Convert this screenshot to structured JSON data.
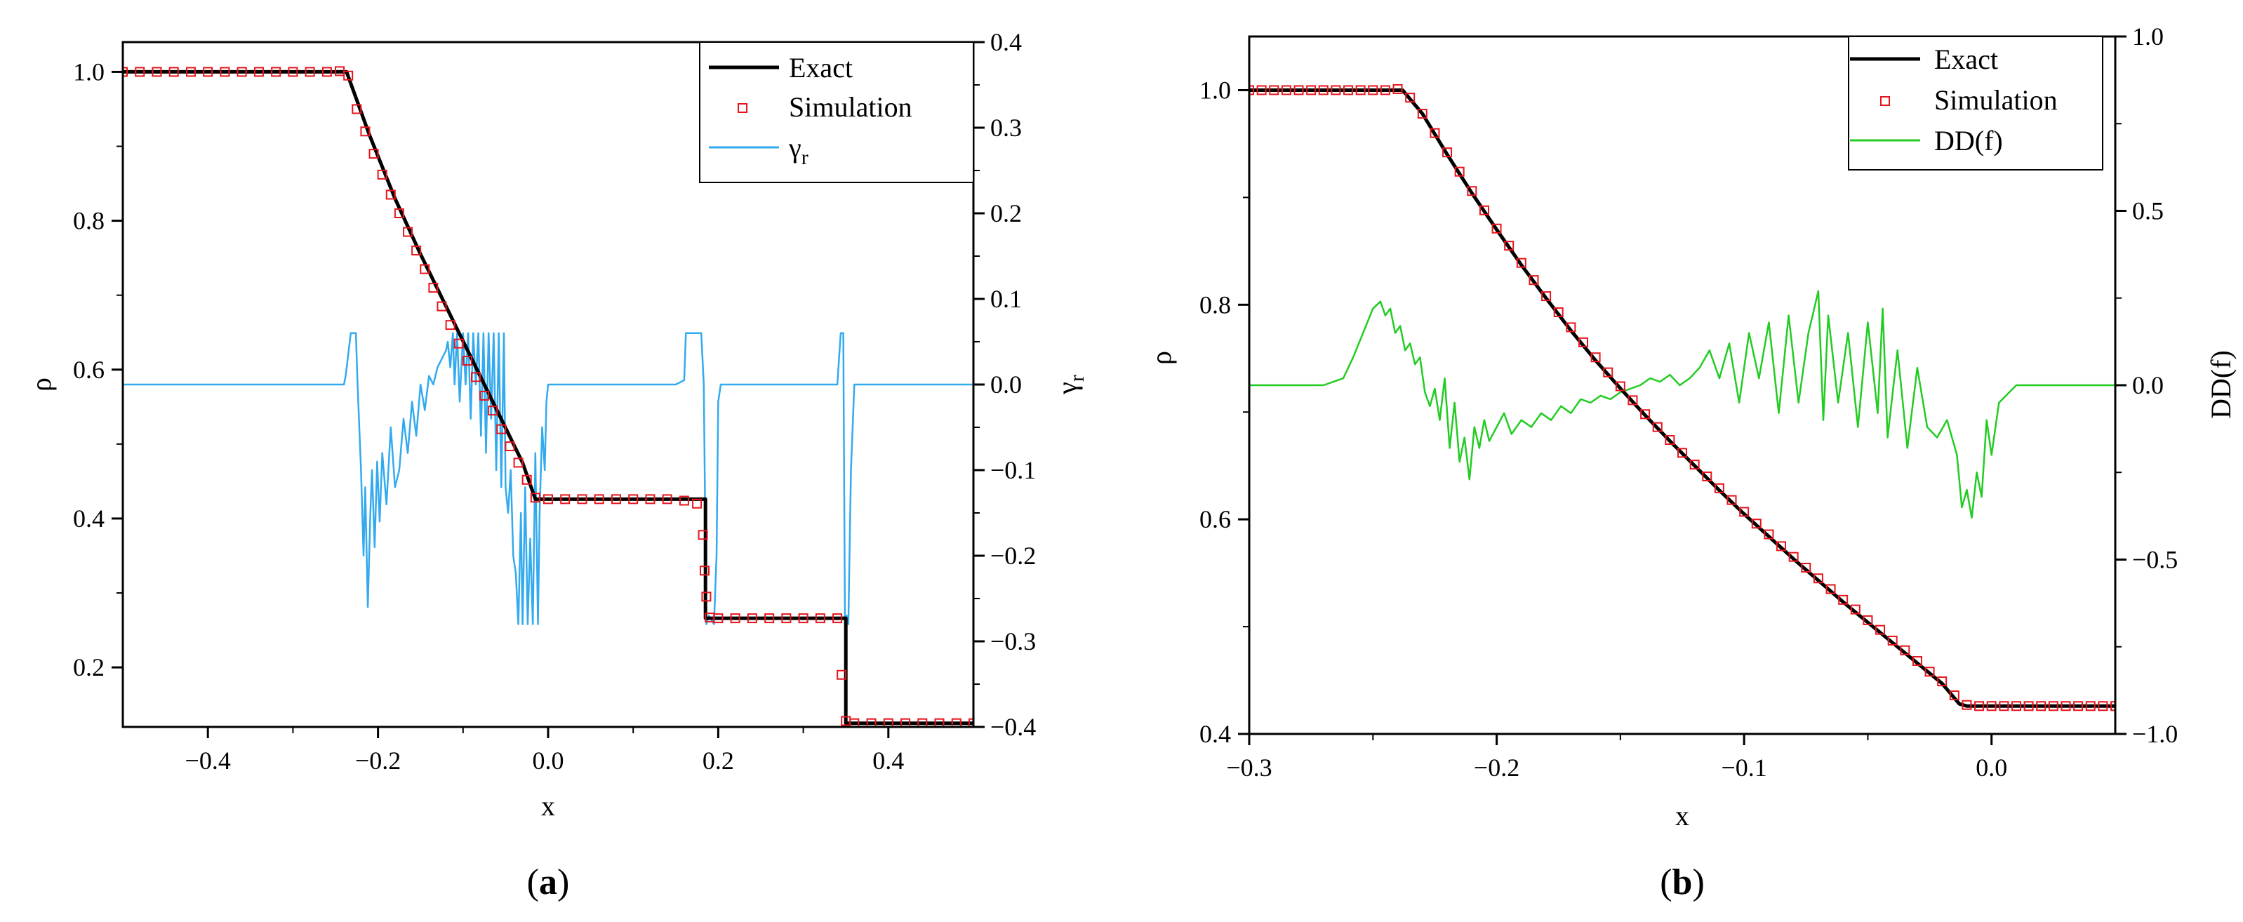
{
  "colors": {
    "exact": "#000000",
    "simulation": "#e8141c",
    "gamma": "#33aaee",
    "dd": "#22cc22",
    "axis": "#000000"
  },
  "chart_data": [
    {
      "type": "line",
      "panel_label": {
        "open": "(",
        "letter": "a",
        "close": ")"
      },
      "xlabel": "x",
      "ylabel": "ρ",
      "y2label": {
        "base": "γ",
        "sub": "r"
      },
      "xlim": [
        -0.5,
        0.5
      ],
      "ylim": [
        0.12,
        1.04
      ],
      "y2lim": [
        -0.4,
        0.4
      ],
      "x_ticks": [
        -0.4,
        -0.2,
        0.0,
        0.2,
        0.4
      ],
      "x_tick_labels": [
        "−0.4",
        "−0.2",
        "0.0",
        "0.2",
        "0.4"
      ],
      "y_ticks": [
        0.2,
        0.4,
        0.6,
        0.8,
        1.0
      ],
      "y_tick_labels": [
        "0.2",
        "0.4",
        "0.6",
        "0.8",
        "1.0"
      ],
      "y2_ticks": [
        -0.4,
        -0.3,
        -0.2,
        -0.1,
        0.0,
        0.1,
        0.2,
        0.3,
        0.4
      ],
      "y2_tick_labels": [
        "−0.4",
        "−0.3",
        "−0.2",
        "−0.1",
        "0.0",
        "0.1",
        "0.2",
        "0.3",
        "0.4"
      ],
      "legend": {
        "position": "top-right",
        "entries": [
          "Exact",
          "Simulation",
          "γ"
        ],
        "gamma_sub": "r"
      },
      "series": [
        {
          "name": "Exact",
          "axis": "left",
          "style": "line",
          "x": [
            -0.5,
            -0.237,
            -0.21,
            -0.18,
            -0.15,
            -0.12,
            -0.09,
            -0.06,
            -0.03,
            -0.015,
            0.185,
            0.185,
            0.35,
            0.35,
            0.5
          ],
          "y": [
            1.0,
            1.0,
            0.915,
            0.83,
            0.755,
            0.685,
            0.615,
            0.545,
            0.475,
            0.426,
            0.426,
            0.266,
            0.266,
            0.125,
            0.125
          ]
        },
        {
          "name": "Simulation",
          "axis": "left",
          "style": "markers",
          "x": [
            -0.5,
            -0.48,
            -0.46,
            -0.44,
            -0.42,
            -0.4,
            -0.38,
            -0.36,
            -0.34,
            -0.32,
            -0.3,
            -0.28,
            -0.26,
            -0.245,
            -0.235,
            -0.225,
            -0.215,
            -0.205,
            -0.195,
            -0.185,
            -0.175,
            -0.165,
            -0.155,
            -0.145,
            -0.135,
            -0.125,
            -0.115,
            -0.105,
            -0.095,
            -0.085,
            -0.075,
            -0.065,
            -0.055,
            -0.045,
            -0.035,
            -0.025,
            -0.015,
            0.0,
            0.02,
            0.04,
            0.06,
            0.08,
            0.1,
            0.12,
            0.14,
            0.16,
            0.175,
            0.182,
            0.184,
            0.186,
            0.19,
            0.2,
            0.22,
            0.24,
            0.26,
            0.28,
            0.3,
            0.32,
            0.34,
            0.345,
            0.35,
            0.36,
            0.38,
            0.4,
            0.42,
            0.44,
            0.46,
            0.48,
            0.5
          ],
          "y": [
            1.0,
            1.0,
            1.0,
            1.0,
            1.0,
            1.0,
            1.0,
            1.0,
            1.0,
            1.0,
            1.0,
            1.0,
            1.0,
            1.001,
            0.995,
            0.95,
            0.92,
            0.89,
            0.862,
            0.835,
            0.81,
            0.785,
            0.76,
            0.735,
            0.71,
            0.685,
            0.66,
            0.635,
            0.612,
            0.59,
            0.565,
            0.545,
            0.52,
            0.497,
            0.475,
            0.452,
            0.428,
            0.426,
            0.426,
            0.426,
            0.426,
            0.426,
            0.426,
            0.426,
            0.426,
            0.424,
            0.42,
            0.378,
            0.33,
            0.295,
            0.267,
            0.266,
            0.266,
            0.266,
            0.266,
            0.266,
            0.266,
            0.266,
            0.266,
            0.19,
            0.128,
            0.125,
            0.125,
            0.125,
            0.125,
            0.125,
            0.125,
            0.125,
            0.125
          ]
        },
        {
          "name": "γr",
          "axis": "right",
          "style": "line",
          "x": [
            -0.5,
            -0.24,
            -0.238,
            -0.232,
            -0.226,
            -0.224,
            -0.22,
            -0.217,
            -0.215,
            -0.212,
            -0.209,
            -0.207,
            -0.204,
            -0.201,
            -0.198,
            -0.195,
            -0.19,
            -0.185,
            -0.18,
            -0.175,
            -0.17,
            -0.165,
            -0.16,
            -0.155,
            -0.15,
            -0.145,
            -0.14,
            -0.135,
            -0.13,
            -0.125,
            -0.12,
            -0.118,
            -0.115,
            -0.112,
            -0.11,
            -0.107,
            -0.104,
            -0.1,
            -0.097,
            -0.094,
            -0.091,
            -0.088,
            -0.085,
            -0.082,
            -0.079,
            -0.076,
            -0.073,
            -0.07,
            -0.067,
            -0.064,
            -0.061,
            -0.058,
            -0.055,
            -0.052,
            -0.05,
            -0.047,
            -0.044,
            -0.041,
            -0.038,
            -0.035,
            -0.032,
            -0.03,
            -0.027,
            -0.024,
            -0.021,
            -0.018,
            -0.015,
            -0.012,
            -0.01,
            -0.007,
            -0.004,
            -0.002,
            0.0,
            0.02,
            0.05,
            0.08,
            0.12,
            0.15,
            0.16,
            0.162,
            0.165,
            0.18,
            0.183,
            0.186,
            0.189,
            0.195,
            0.198,
            0.2,
            0.203,
            0.206,
            0.21,
            0.22,
            0.25,
            0.3,
            0.34,
            0.344,
            0.347,
            0.349,
            0.351,
            0.353,
            0.356,
            0.36,
            0.4,
            0.45,
            0.5
          ],
          "y": [
            0.0,
            0.0,
            0.01,
            0.06,
            0.06,
            0.0,
            -0.1,
            -0.2,
            -0.12,
            -0.26,
            -0.15,
            -0.1,
            -0.19,
            -0.09,
            -0.16,
            -0.08,
            -0.14,
            -0.05,
            -0.12,
            -0.1,
            -0.04,
            -0.08,
            -0.02,
            -0.06,
            0.0,
            -0.03,
            0.01,
            0.0,
            0.02,
            0.03,
            0.04,
            0.05,
            0.02,
            0.06,
            0.0,
            0.06,
            -0.02,
            0.06,
            0.0,
            0.06,
            -0.04,
            0.06,
            0.0,
            0.06,
            -0.06,
            0.06,
            -0.08,
            0.06,
            -0.04,
            0.06,
            -0.1,
            0.06,
            -0.12,
            0.06,
            -0.12,
            -0.15,
            -0.1,
            -0.2,
            -0.22,
            -0.28,
            -0.15,
            -0.28,
            -0.12,
            -0.28,
            -0.18,
            -0.28,
            -0.08,
            -0.28,
            -0.15,
            -0.05,
            -0.1,
            -0.02,
            0.0,
            0.0,
            0.0,
            0.0,
            0.0,
            0.0,
            0.005,
            0.06,
            0.06,
            0.06,
            0.0,
            -0.28,
            -0.27,
            -0.28,
            -0.2,
            -0.02,
            0.0,
            0.0,
            0.0,
            0.0,
            0.0,
            0.0,
            0.0,
            0.06,
            0.06,
            -0.28,
            -0.27,
            -0.28,
            -0.1,
            0.0,
            0.0,
            0.0,
            0.0
          ]
        }
      ]
    },
    {
      "type": "line",
      "panel_label": {
        "open": "(",
        "letter": "b",
        "close": ")"
      },
      "xlabel": "x",
      "ylabel": "ρ",
      "y2label": "DD(f)",
      "xlim": [
        -0.3,
        0.05
      ],
      "ylim": [
        0.4,
        1.05
      ],
      "y2lim": [
        -1.0,
        1.0
      ],
      "x_ticks": [
        -0.3,
        -0.2,
        -0.1,
        0.0
      ],
      "x_tick_labels": [
        "−0.3",
        "−0.2",
        "−0.1",
        "0.0"
      ],
      "y_ticks": [
        0.4,
        0.6,
        0.8,
        1.0
      ],
      "y_tick_labels": [
        "0.4",
        "0.6",
        "0.8",
        "1.0"
      ],
      "y2_ticks": [
        -1.0,
        -0.5,
        0.0,
        0.5,
        1.0
      ],
      "y2_tick_labels": [
        "−1.0",
        "−0.5",
        "0.0",
        "0.5",
        "1.0"
      ],
      "legend": {
        "position": "top-right",
        "entries": [
          "Exact",
          "Simulation",
          "DD(f)"
        ]
      },
      "series": [
        {
          "name": "Exact",
          "axis": "left",
          "style": "line",
          "x": [
            -0.3,
            -0.238,
            -0.23,
            -0.22,
            -0.21,
            -0.2,
            -0.19,
            -0.18,
            -0.17,
            -0.16,
            -0.15,
            -0.14,
            -0.13,
            -0.12,
            -0.11,
            -0.1,
            -0.09,
            -0.08,
            -0.07,
            -0.06,
            -0.05,
            -0.04,
            -0.03,
            -0.02,
            -0.013,
            -0.01,
            0.05
          ],
          "y": [
            1.0,
            1.0,
            0.978,
            0.94,
            0.904,
            0.87,
            0.837,
            0.806,
            0.776,
            0.748,
            0.722,
            0.697,
            0.673,
            0.65,
            0.627,
            0.605,
            0.584,
            0.563,
            0.543,
            0.523,
            0.504,
            0.485,
            0.466,
            0.447,
            0.428,
            0.426,
            0.426
          ]
        },
        {
          "name": "Simulation",
          "axis": "left",
          "style": "markers",
          "x": [
            -0.3,
            -0.295,
            -0.29,
            -0.285,
            -0.28,
            -0.275,
            -0.27,
            -0.265,
            -0.26,
            -0.255,
            -0.25,
            -0.245,
            -0.24,
            -0.235,
            -0.23,
            -0.225,
            -0.22,
            -0.215,
            -0.21,
            -0.205,
            -0.2,
            -0.195,
            -0.19,
            -0.185,
            -0.18,
            -0.175,
            -0.17,
            -0.165,
            -0.16,
            -0.155,
            -0.15,
            -0.145,
            -0.14,
            -0.135,
            -0.13,
            -0.125,
            -0.12,
            -0.115,
            -0.11,
            -0.105,
            -0.1,
            -0.095,
            -0.09,
            -0.085,
            -0.08,
            -0.075,
            -0.07,
            -0.065,
            -0.06,
            -0.055,
            -0.05,
            -0.045,
            -0.04,
            -0.035,
            -0.03,
            -0.025,
            -0.02,
            -0.015,
            -0.01,
            -0.005,
            0.0,
            0.005,
            0.01,
            0.015,
            0.02,
            0.025,
            0.03,
            0.035,
            0.04,
            0.045,
            0.05
          ],
          "y": [
            1.0,
            1.0,
            1.0,
            1.0,
            1.0,
            1.0,
            1.0,
            1.0,
            1.0,
            1.0,
            1.0,
            1.0,
            1.001,
            0.993,
            0.978,
            0.96,
            0.942,
            0.924,
            0.906,
            0.888,
            0.871,
            0.855,
            0.839,
            0.823,
            0.808,
            0.793,
            0.779,
            0.765,
            0.751,
            0.737,
            0.724,
            0.711,
            0.698,
            0.686,
            0.674,
            0.662,
            0.651,
            0.64,
            0.629,
            0.618,
            0.607,
            0.596,
            0.586,
            0.575,
            0.565,
            0.555,
            0.545,
            0.535,
            0.525,
            0.516,
            0.506,
            0.497,
            0.487,
            0.478,
            0.468,
            0.458,
            0.449,
            0.436,
            0.427,
            0.426,
            0.426,
            0.426,
            0.426,
            0.426,
            0.426,
            0.426,
            0.426,
            0.426,
            0.426,
            0.426,
            0.426
          ]
        },
        {
          "name": "DD(f)",
          "axis": "right",
          "style": "line",
          "x": [
            -0.3,
            -0.27,
            -0.262,
            -0.258,
            -0.254,
            -0.25,
            -0.247,
            -0.245,
            -0.243,
            -0.241,
            -0.239,
            -0.237,
            -0.235,
            -0.233,
            -0.231,
            -0.229,
            -0.227,
            -0.225,
            -0.223,
            -0.221,
            -0.219,
            -0.217,
            -0.215,
            -0.213,
            -0.211,
            -0.209,
            -0.207,
            -0.205,
            -0.203,
            -0.2,
            -0.197,
            -0.194,
            -0.19,
            -0.186,
            -0.182,
            -0.178,
            -0.174,
            -0.17,
            -0.166,
            -0.162,
            -0.158,
            -0.154,
            -0.15,
            -0.146,
            -0.142,
            -0.138,
            -0.134,
            -0.13,
            -0.126,
            -0.122,
            -0.118,
            -0.114,
            -0.11,
            -0.106,
            -0.102,
            -0.098,
            -0.094,
            -0.09,
            -0.086,
            -0.082,
            -0.078,
            -0.074,
            -0.07,
            -0.068,
            -0.066,
            -0.062,
            -0.058,
            -0.054,
            -0.05,
            -0.046,
            -0.044,
            -0.042,
            -0.038,
            -0.034,
            -0.03,
            -0.026,
            -0.022,
            -0.018,
            -0.014,
            -0.012,
            -0.01,
            -0.008,
            -0.006,
            -0.004,
            -0.002,
            0.0,
            0.003,
            0.01,
            0.05
          ],
          "y": [
            0.0,
            0.0,
            0.02,
            0.08,
            0.15,
            0.22,
            0.24,
            0.2,
            0.22,
            0.15,
            0.17,
            0.1,
            0.12,
            0.06,
            0.08,
            -0.02,
            -0.06,
            -0.01,
            -0.1,
            0.02,
            -0.18,
            -0.05,
            -0.22,
            -0.15,
            -0.27,
            -0.12,
            -0.18,
            -0.1,
            -0.16,
            -0.12,
            -0.08,
            -0.14,
            -0.1,
            -0.12,
            -0.08,
            -0.1,
            -0.06,
            -0.08,
            -0.04,
            -0.05,
            -0.03,
            -0.04,
            -0.02,
            -0.01,
            0.0,
            0.02,
            0.01,
            0.03,
            0.0,
            0.02,
            0.05,
            0.1,
            0.02,
            0.12,
            -0.05,
            0.15,
            0.02,
            0.18,
            -0.08,
            0.2,
            -0.05,
            0.15,
            0.27,
            -0.1,
            0.2,
            -0.05,
            0.15,
            -0.12,
            0.18,
            -0.08,
            0.22,
            -0.15,
            0.1,
            -0.18,
            0.05,
            -0.12,
            -0.15,
            -0.1,
            -0.2,
            -0.35,
            -0.3,
            -0.38,
            -0.25,
            -0.32,
            -0.1,
            -0.2,
            -0.05,
            0.0,
            0.0
          ]
        }
      ]
    }
  ]
}
